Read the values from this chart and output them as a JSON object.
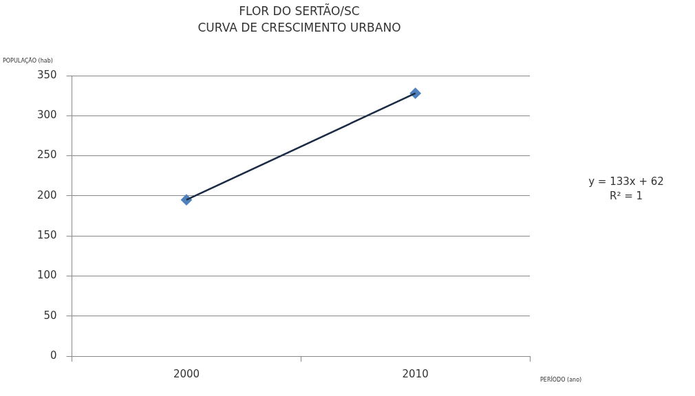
{
  "chart_data": {
    "type": "line",
    "title": "FLOR DO SERTÃO/SC",
    "subtitle": "CURVA DE CRESCIMENTO URBANO",
    "xlabel": "PERÍODO (ano)",
    "ylabel": "POPULAÇÃO (hab)",
    "categories": [
      "2000",
      "2010"
    ],
    "series": [
      {
        "color": "#4f81bd",
        "values": [
          195,
          328
        ],
        "marker": "diamond"
      },
      {
        "color": "#1f2d44",
        "values": [
          195,
          328
        ],
        "marker": "none"
      }
    ],
    "ylim": [
      0,
      350
    ],
    "yticks": [
      0,
      50,
      100,
      150,
      200,
      250,
      300,
      350
    ],
    "grid": "y",
    "legend": false,
    "annotations": [
      "y = 133x + 62",
      "R² = 1"
    ]
  }
}
